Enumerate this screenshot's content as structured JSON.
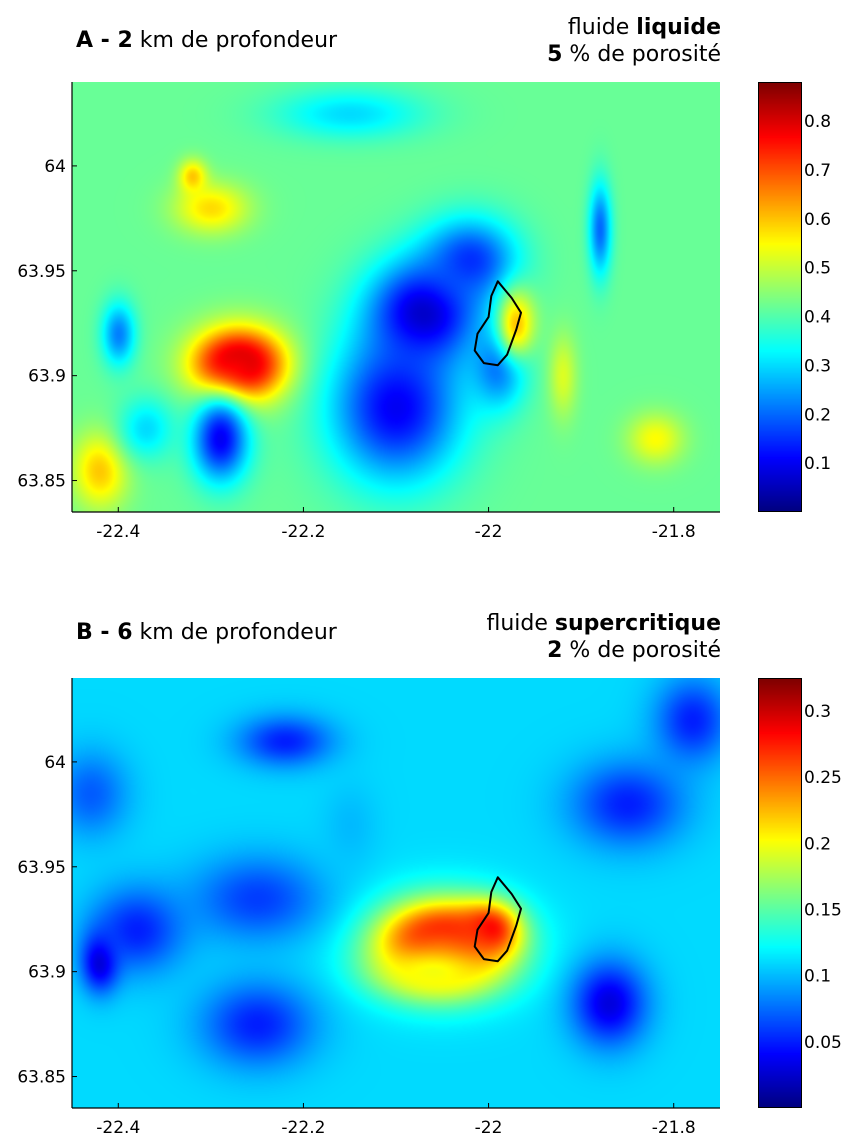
{
  "panels": [
    {
      "title_letter": "A - ",
      "title_depth": "2",
      "title_rest": " km de profondeur",
      "fluid_word": "fluide ",
      "fluid_type": "liquide",
      "porosity_value": "5",
      "porosity_rest": " % de porosité"
    },
    {
      "title_letter": "B - ",
      "title_depth": "6",
      "title_rest": " km de profondeur",
      "fluid_word": "fluide ",
      "fluid_type": "supercritique",
      "porosity_value": "2",
      "porosity_rest": " % de porosité"
    }
  ],
  "chart_data": [
    {
      "type": "heatmap",
      "title": "A - 2 km de profondeur — fluide liquide, 5 % de porosité",
      "xlim": [
        -22.45,
        -21.75
      ],
      "ylim": [
        63.835,
        64.04
      ],
      "x_ticks": [
        -22.4,
        -22.2,
        -22.0,
        -21.8
      ],
      "x_tick_labels": [
        "-22.4",
        "-22.2",
        "-22",
        "-21.8"
      ],
      "y_ticks": [
        63.85,
        63.9,
        63.95,
        64.0
      ],
      "y_tick_labels": [
        "63.85",
        "63.9",
        "63.95",
        "64"
      ],
      "colorbar": {
        "min": 0.0,
        "max": 0.88,
        "ticks": [
          0.1,
          0.2,
          0.3,
          0.4,
          0.5,
          0.6,
          0.7,
          0.8
        ],
        "tick_labels": [
          "0.1",
          "0.2",
          "0.3",
          "0.4",
          "0.5",
          "0.6",
          "0.7",
          "0.8"
        ],
        "colormap": "jet"
      },
      "background_value": 0.42,
      "blobs": [
        {
          "lon": -22.27,
          "lat": 63.906,
          "value": 0.86,
          "rlon": 0.035,
          "rlat": 0.011
        },
        {
          "lon": -22.27,
          "lat": 63.905,
          "value": 0.8,
          "rlon": 0.05,
          "rlat": 0.018
        },
        {
          "lon": -22.07,
          "lat": 63.93,
          "value": 0.05,
          "rlon": 0.06,
          "rlat": 0.025
        },
        {
          "lon": -22.1,
          "lat": 63.885,
          "value": 0.1,
          "rlon": 0.07,
          "rlat": 0.035
        },
        {
          "lon": -22.02,
          "lat": 63.955,
          "value": 0.15,
          "rlon": 0.05,
          "rlat": 0.02
        },
        {
          "lon": -21.99,
          "lat": 63.905,
          "value": 0.2,
          "rlon": 0.03,
          "rlat": 0.02
        },
        {
          "lon": -22.29,
          "lat": 63.87,
          "value": 0.1,
          "rlon": 0.03,
          "rlat": 0.02
        },
        {
          "lon": -22.4,
          "lat": 63.92,
          "value": 0.22,
          "rlon": 0.018,
          "rlat": 0.015
        },
        {
          "lon": -21.88,
          "lat": 63.97,
          "value": 0.2,
          "rlon": 0.012,
          "rlat": 0.022
        },
        {
          "lon": -22.15,
          "lat": 64.025,
          "value": 0.3,
          "rlon": 0.08,
          "rlat": 0.012
        },
        {
          "lon": -22.3,
          "lat": 63.98,
          "value": 0.58,
          "rlon": 0.04,
          "rlat": 0.012
        },
        {
          "lon": -22.32,
          "lat": 63.995,
          "value": 0.6,
          "rlon": 0.015,
          "rlat": 0.008
        },
        {
          "lon": -21.97,
          "lat": 63.925,
          "value": 0.6,
          "rlon": 0.02,
          "rlat": 0.016
        },
        {
          "lon": -21.92,
          "lat": 63.9,
          "value": 0.52,
          "rlon": 0.015,
          "rlat": 0.02
        },
        {
          "lon": -22.42,
          "lat": 63.855,
          "value": 0.6,
          "rlon": 0.03,
          "rlat": 0.018
        },
        {
          "lon": -21.82,
          "lat": 63.87,
          "value": 0.55,
          "rlon": 0.03,
          "rlat": 0.012
        },
        {
          "lon": -22.37,
          "lat": 63.875,
          "value": 0.3,
          "rlon": 0.03,
          "rlat": 0.015
        }
      ],
      "outline": [
        [
          -21.99,
          63.945
        ],
        [
          -21.975,
          63.937
        ],
        [
          -21.965,
          63.93
        ],
        [
          -21.97,
          63.922
        ],
        [
          -21.98,
          63.91
        ],
        [
          -21.99,
          63.905
        ],
        [
          -22.005,
          63.906
        ],
        [
          -22.015,
          63.912
        ],
        [
          -22.012,
          63.92
        ],
        [
          -22.0,
          63.928
        ],
        [
          -21.997,
          63.938
        ]
      ]
    },
    {
      "type": "heatmap",
      "title": "B - 6 km de profondeur — fluide supercritique, 2 % de porosité",
      "xlim": [
        -22.45,
        -21.75
      ],
      "ylim": [
        63.835,
        64.04
      ],
      "x_ticks": [
        -22.4,
        -22.2,
        -22.0,
        -21.8
      ],
      "x_tick_labels": [
        "-22.4",
        "-22.2",
        "-22",
        "-21.8"
      ],
      "y_ticks": [
        63.85,
        63.9,
        63.95,
        64.0
      ],
      "y_tick_labels": [
        "63.85",
        "63.9",
        "63.95",
        "64"
      ],
      "colorbar": {
        "min": 0.0,
        "max": 0.325,
        "ticks": [
          0.05,
          0.1,
          0.15,
          0.2,
          0.25,
          0.3
        ],
        "tick_labels": [
          "0.05",
          "0.1",
          "0.15",
          "0.2",
          "0.25",
          "0.3"
        ],
        "colormap": "jet"
      },
      "background_value": 0.11,
      "blobs": [
        {
          "lon": -22.05,
          "lat": 63.915,
          "value": 0.32,
          "rlon": 0.05,
          "rlat": 0.014
        },
        {
          "lon": -22.0,
          "lat": 63.92,
          "value": 0.3,
          "rlon": 0.03,
          "rlat": 0.012
        },
        {
          "lon": -22.05,
          "lat": 63.912,
          "value": 0.27,
          "rlon": 0.075,
          "rlat": 0.022
        },
        {
          "lon": -22.06,
          "lat": 63.9,
          "value": 0.2,
          "rlon": 0.06,
          "rlat": 0.012
        },
        {
          "lon": -22.42,
          "lat": 63.905,
          "value": 0.02,
          "rlon": 0.02,
          "rlat": 0.014
        },
        {
          "lon": -22.38,
          "lat": 63.92,
          "value": 0.05,
          "rlon": 0.05,
          "rlat": 0.02
        },
        {
          "lon": -22.25,
          "lat": 63.875,
          "value": 0.05,
          "rlon": 0.06,
          "rlat": 0.02
        },
        {
          "lon": -22.25,
          "lat": 63.935,
          "value": 0.06,
          "rlon": 0.07,
          "rlat": 0.02
        },
        {
          "lon": -22.22,
          "lat": 64.01,
          "value": 0.05,
          "rlon": 0.05,
          "rlat": 0.012
        },
        {
          "lon": -21.87,
          "lat": 63.885,
          "value": 0.03,
          "rlon": 0.04,
          "rlat": 0.02
        },
        {
          "lon": -21.85,
          "lat": 63.98,
          "value": 0.05,
          "rlon": 0.06,
          "rlat": 0.02
        },
        {
          "lon": -21.78,
          "lat": 64.02,
          "value": 0.05,
          "rlon": 0.04,
          "rlat": 0.02
        },
        {
          "lon": -22.43,
          "lat": 63.985,
          "value": 0.07,
          "rlon": 0.04,
          "rlat": 0.02
        },
        {
          "lon": -22.15,
          "lat": 63.97,
          "value": 0.1,
          "rlon": 0.03,
          "rlat": 0.02
        }
      ],
      "outline": [
        [
          -21.99,
          63.945
        ],
        [
          -21.975,
          63.937
        ],
        [
          -21.965,
          63.93
        ],
        [
          -21.97,
          63.922
        ],
        [
          -21.98,
          63.91
        ],
        [
          -21.99,
          63.905
        ],
        [
          -22.005,
          63.906
        ],
        [
          -22.015,
          63.912
        ],
        [
          -22.012,
          63.92
        ],
        [
          -22.0,
          63.928
        ],
        [
          -21.997,
          63.938
        ]
      ]
    }
  ]
}
